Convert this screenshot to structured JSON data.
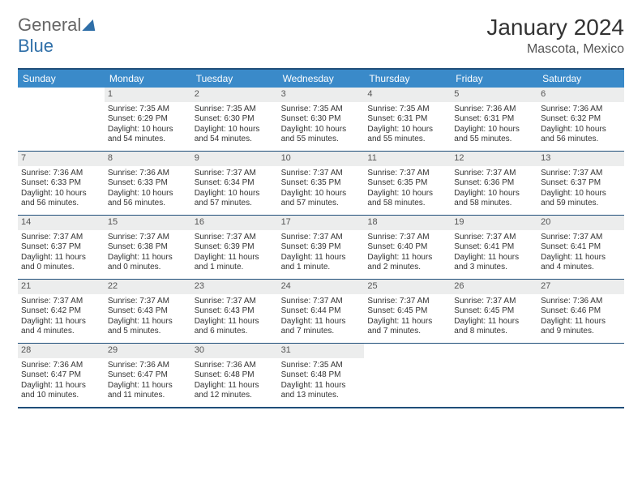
{
  "colors": {
    "brand_blue": "#2f6fa8",
    "header_blue": "#3a8ac9",
    "rule_blue": "#1f4e79",
    "daynum_bg": "#eceded",
    "text": "#333333",
    "muted": "#666666",
    "background": "#ffffff"
  },
  "logo": {
    "part1": "General",
    "part2": "Blue"
  },
  "title": "January 2024",
  "location": "Mascota, Mexico",
  "day_headers": [
    "Sunday",
    "Monday",
    "Tuesday",
    "Wednesday",
    "Thursday",
    "Friday",
    "Saturday"
  ],
  "weeks": [
    [
      {
        "blank": true
      },
      {
        "n": "1",
        "sunrise": "Sunrise: 7:35 AM",
        "sunset": "Sunset: 6:29 PM",
        "day1": "Daylight: 10 hours",
        "day2": "and 54 minutes."
      },
      {
        "n": "2",
        "sunrise": "Sunrise: 7:35 AM",
        "sunset": "Sunset: 6:30 PM",
        "day1": "Daylight: 10 hours",
        "day2": "and 54 minutes."
      },
      {
        "n": "3",
        "sunrise": "Sunrise: 7:35 AM",
        "sunset": "Sunset: 6:30 PM",
        "day1": "Daylight: 10 hours",
        "day2": "and 55 minutes."
      },
      {
        "n": "4",
        "sunrise": "Sunrise: 7:35 AM",
        "sunset": "Sunset: 6:31 PM",
        "day1": "Daylight: 10 hours",
        "day2": "and 55 minutes."
      },
      {
        "n": "5",
        "sunrise": "Sunrise: 7:36 AM",
        "sunset": "Sunset: 6:31 PM",
        "day1": "Daylight: 10 hours",
        "day2": "and 55 minutes."
      },
      {
        "n": "6",
        "sunrise": "Sunrise: 7:36 AM",
        "sunset": "Sunset: 6:32 PM",
        "day1": "Daylight: 10 hours",
        "day2": "and 56 minutes."
      }
    ],
    [
      {
        "n": "7",
        "sunrise": "Sunrise: 7:36 AM",
        "sunset": "Sunset: 6:33 PM",
        "day1": "Daylight: 10 hours",
        "day2": "and 56 minutes."
      },
      {
        "n": "8",
        "sunrise": "Sunrise: 7:36 AM",
        "sunset": "Sunset: 6:33 PM",
        "day1": "Daylight: 10 hours",
        "day2": "and 56 minutes."
      },
      {
        "n": "9",
        "sunrise": "Sunrise: 7:37 AM",
        "sunset": "Sunset: 6:34 PM",
        "day1": "Daylight: 10 hours",
        "day2": "and 57 minutes."
      },
      {
        "n": "10",
        "sunrise": "Sunrise: 7:37 AM",
        "sunset": "Sunset: 6:35 PM",
        "day1": "Daylight: 10 hours",
        "day2": "and 57 minutes."
      },
      {
        "n": "11",
        "sunrise": "Sunrise: 7:37 AM",
        "sunset": "Sunset: 6:35 PM",
        "day1": "Daylight: 10 hours",
        "day2": "and 58 minutes."
      },
      {
        "n": "12",
        "sunrise": "Sunrise: 7:37 AM",
        "sunset": "Sunset: 6:36 PM",
        "day1": "Daylight: 10 hours",
        "day2": "and 58 minutes."
      },
      {
        "n": "13",
        "sunrise": "Sunrise: 7:37 AM",
        "sunset": "Sunset: 6:37 PM",
        "day1": "Daylight: 10 hours",
        "day2": "and 59 minutes."
      }
    ],
    [
      {
        "n": "14",
        "sunrise": "Sunrise: 7:37 AM",
        "sunset": "Sunset: 6:37 PM",
        "day1": "Daylight: 11 hours",
        "day2": "and 0 minutes."
      },
      {
        "n": "15",
        "sunrise": "Sunrise: 7:37 AM",
        "sunset": "Sunset: 6:38 PM",
        "day1": "Daylight: 11 hours",
        "day2": "and 0 minutes."
      },
      {
        "n": "16",
        "sunrise": "Sunrise: 7:37 AM",
        "sunset": "Sunset: 6:39 PM",
        "day1": "Daylight: 11 hours",
        "day2": "and 1 minute."
      },
      {
        "n": "17",
        "sunrise": "Sunrise: 7:37 AM",
        "sunset": "Sunset: 6:39 PM",
        "day1": "Daylight: 11 hours",
        "day2": "and 1 minute."
      },
      {
        "n": "18",
        "sunrise": "Sunrise: 7:37 AM",
        "sunset": "Sunset: 6:40 PM",
        "day1": "Daylight: 11 hours",
        "day2": "and 2 minutes."
      },
      {
        "n": "19",
        "sunrise": "Sunrise: 7:37 AM",
        "sunset": "Sunset: 6:41 PM",
        "day1": "Daylight: 11 hours",
        "day2": "and 3 minutes."
      },
      {
        "n": "20",
        "sunrise": "Sunrise: 7:37 AM",
        "sunset": "Sunset: 6:41 PM",
        "day1": "Daylight: 11 hours",
        "day2": "and 4 minutes."
      }
    ],
    [
      {
        "n": "21",
        "sunrise": "Sunrise: 7:37 AM",
        "sunset": "Sunset: 6:42 PM",
        "day1": "Daylight: 11 hours",
        "day2": "and 4 minutes."
      },
      {
        "n": "22",
        "sunrise": "Sunrise: 7:37 AM",
        "sunset": "Sunset: 6:43 PM",
        "day1": "Daylight: 11 hours",
        "day2": "and 5 minutes."
      },
      {
        "n": "23",
        "sunrise": "Sunrise: 7:37 AM",
        "sunset": "Sunset: 6:43 PM",
        "day1": "Daylight: 11 hours",
        "day2": "and 6 minutes."
      },
      {
        "n": "24",
        "sunrise": "Sunrise: 7:37 AM",
        "sunset": "Sunset: 6:44 PM",
        "day1": "Daylight: 11 hours",
        "day2": "and 7 minutes."
      },
      {
        "n": "25",
        "sunrise": "Sunrise: 7:37 AM",
        "sunset": "Sunset: 6:45 PM",
        "day1": "Daylight: 11 hours",
        "day2": "and 7 minutes."
      },
      {
        "n": "26",
        "sunrise": "Sunrise: 7:37 AM",
        "sunset": "Sunset: 6:45 PM",
        "day1": "Daylight: 11 hours",
        "day2": "and 8 minutes."
      },
      {
        "n": "27",
        "sunrise": "Sunrise: 7:36 AM",
        "sunset": "Sunset: 6:46 PM",
        "day1": "Daylight: 11 hours",
        "day2": "and 9 minutes."
      }
    ],
    [
      {
        "n": "28",
        "sunrise": "Sunrise: 7:36 AM",
        "sunset": "Sunset: 6:47 PM",
        "day1": "Daylight: 11 hours",
        "day2": "and 10 minutes."
      },
      {
        "n": "29",
        "sunrise": "Sunrise: 7:36 AM",
        "sunset": "Sunset: 6:47 PM",
        "day1": "Daylight: 11 hours",
        "day2": "and 11 minutes."
      },
      {
        "n": "30",
        "sunrise": "Sunrise: 7:36 AM",
        "sunset": "Sunset: 6:48 PM",
        "day1": "Daylight: 11 hours",
        "day2": "and 12 minutes."
      },
      {
        "n": "31",
        "sunrise": "Sunrise: 7:35 AM",
        "sunset": "Sunset: 6:48 PM",
        "day1": "Daylight: 11 hours",
        "day2": "and 13 minutes."
      },
      {
        "blank": true
      },
      {
        "blank": true
      },
      {
        "blank": true
      }
    ]
  ]
}
